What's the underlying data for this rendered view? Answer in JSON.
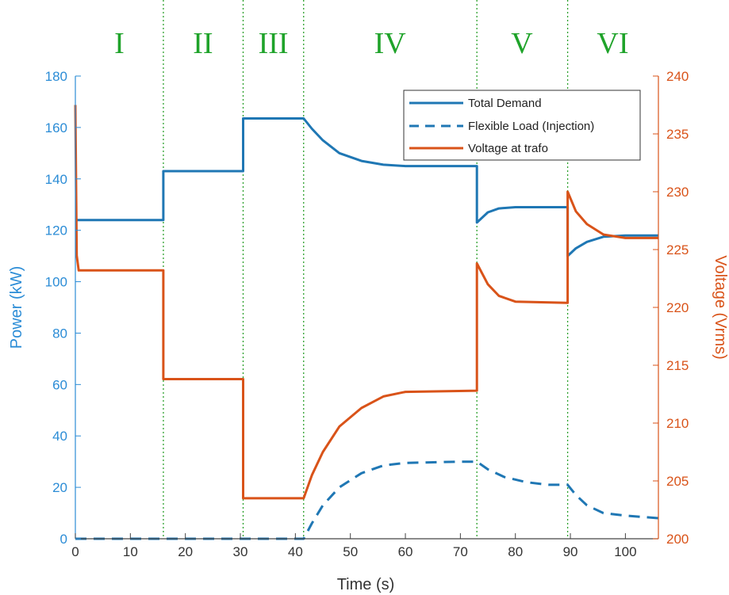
{
  "chart_data": {
    "type": "line",
    "xlabel": "Time (s)",
    "ylabel_left": "Power (kW)",
    "ylabel_right": "Voltage (Vrms)",
    "xlim": [
      0,
      106
    ],
    "ylim_left": [
      0,
      180
    ],
    "ylim_right": [
      200,
      240
    ],
    "xticks": [
      "0",
      "10",
      "20",
      "30",
      "40",
      "50",
      "60",
      "70",
      "80",
      "90",
      "100"
    ],
    "yticks_left": [
      "0",
      "20",
      "40",
      "60",
      "80",
      "100",
      "120",
      "140",
      "160",
      "180"
    ],
    "yticks_right": [
      "200",
      "205",
      "210",
      "215",
      "220",
      "225",
      "230",
      "235",
      "240"
    ],
    "grid": false,
    "legend_position": "top-right",
    "phase_boundaries": [
      16,
      30.5,
      41.5,
      73,
      89.5
    ],
    "phases": [
      {
        "label": "I",
        "x": 8
      },
      {
        "label": "II",
        "x": 23.2
      },
      {
        "label": "III",
        "x": 36
      },
      {
        "label": "IV",
        "x": 57.2
      },
      {
        "label": "V",
        "x": 81.2
      },
      {
        "label": "VI",
        "x": 97.7
      }
    ],
    "series": [
      {
        "name": "Total Demand",
        "axis": "left",
        "style": "solid",
        "color": "#1f77b4",
        "points": [
          [
            0,
            124
          ],
          [
            16,
            124
          ],
          [
            16,
            143
          ],
          [
            30.5,
            143
          ],
          [
            30.5,
            163.5
          ],
          [
            41.5,
            163.5
          ],
          [
            43,
            159.5
          ],
          [
            45,
            155
          ],
          [
            48,
            150
          ],
          [
            52,
            147
          ],
          [
            56,
            145.5
          ],
          [
            60,
            145
          ],
          [
            73,
            145
          ],
          [
            73,
            123
          ],
          [
            75,
            127
          ],
          [
            77,
            128.5
          ],
          [
            80,
            129
          ],
          [
            89.5,
            129
          ],
          [
            89.5,
            110
          ],
          [
            91,
            113
          ],
          [
            93,
            115.5
          ],
          [
            96,
            117.5
          ],
          [
            100,
            118
          ],
          [
            106,
            118
          ]
        ]
      },
      {
        "name": "Flexible Load (Injection)",
        "axis": "left",
        "style": "dashed",
        "color": "#1f77b4",
        "points": [
          [
            0,
            0
          ],
          [
            41.5,
            0
          ],
          [
            43,
            6
          ],
          [
            45,
            13
          ],
          [
            48,
            20
          ],
          [
            52,
            25.5
          ],
          [
            56,
            28.5
          ],
          [
            60,
            29.5
          ],
          [
            70,
            30
          ],
          [
            73,
            30
          ],
          [
            75,
            27
          ],
          [
            78,
            24
          ],
          [
            82,
            22
          ],
          [
            86,
            21
          ],
          [
            89.5,
            21
          ],
          [
            91,
            17
          ],
          [
            93,
            13
          ],
          [
            96,
            10
          ],
          [
            100,
            9
          ],
          [
            106,
            8
          ]
        ]
      },
      {
        "name": "Voltage at trafo",
        "axis": "right",
        "style": "solid",
        "color": "#d95319",
        "points": [
          [
            0,
            237.5
          ],
          [
            0.25,
            224.5
          ],
          [
            0.6,
            223.2
          ],
          [
            16,
            223.2
          ],
          [
            16,
            213.8
          ],
          [
            30.5,
            213.8
          ],
          [
            30.5,
            203.5
          ],
          [
            41.5,
            203.5
          ],
          [
            43,
            205.5
          ],
          [
            45,
            207.5
          ],
          [
            48,
            209.7
          ],
          [
            52,
            211.3
          ],
          [
            56,
            212.3
          ],
          [
            60,
            212.7
          ],
          [
            73,
            212.8
          ],
          [
            73,
            223.8
          ],
          [
            75,
            222
          ],
          [
            77,
            221
          ],
          [
            80,
            220.5
          ],
          [
            89.5,
            220.4
          ],
          [
            89.5,
            230
          ],
          [
            91,
            228.3
          ],
          [
            93,
            227.2
          ],
          [
            96,
            226.3
          ],
          [
            100,
            226
          ],
          [
            106,
            226
          ]
        ]
      }
    ]
  }
}
